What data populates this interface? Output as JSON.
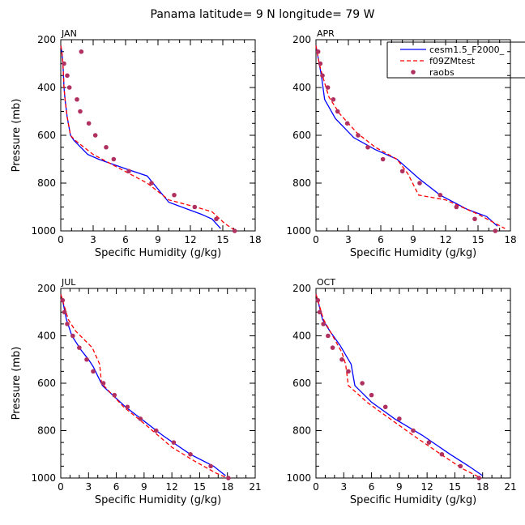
{
  "figure": {
    "title": "Panama  latitude= 9 N longitude= 79 W"
  },
  "legend": {
    "entries": [
      {
        "name": "cesm1.5_F2000_",
        "color": "#0000ff",
        "style": "solid"
      },
      {
        "name": "f09ZMtest",
        "color": "#ff0000",
        "style": "dashed"
      },
      {
        "name": "raobs",
        "color": "#b03060",
        "style": "dots"
      }
    ]
  },
  "chart_data": [
    {
      "type": "line",
      "panel": "JAN",
      "xlabel": "Specific Humidity (g/kg)",
      "ylabel": "Pressure (mb)",
      "xlim": [
        0,
        18
      ],
      "ylim": [
        200,
        1000
      ],
      "y_inverted": true,
      "xticks": [
        0,
        3,
        6,
        9,
        12,
        15,
        18
      ],
      "yticks": [
        200,
        400,
        600,
        800,
        1000
      ],
      "series": [
        {
          "name": "cesm1.5_F2000_",
          "points": [
            [
              0.0,
              225
            ],
            [
              0.1,
              250
            ],
            [
              0.2,
              300
            ],
            [
              0.3,
              400
            ],
            [
              0.4,
              450
            ],
            [
              0.6,
              525
            ],
            [
              0.9,
              600
            ],
            [
              1.2,
              620
            ],
            [
              2.5,
              680
            ],
            [
              3.5,
              700
            ],
            [
              6.0,
              740
            ],
            [
              8.0,
              770
            ],
            [
              10.0,
              880
            ],
            [
              13.0,
              930
            ],
            [
              14.0,
              950
            ],
            [
              14.8,
              990
            ]
          ]
        },
        {
          "name": "f09ZMtest",
          "points": [
            [
              0.0,
              225
            ],
            [
              0.1,
              250
            ],
            [
              0.2,
              300
            ],
            [
              0.3,
              400
            ],
            [
              0.4,
              450
            ],
            [
              0.6,
              525
            ],
            [
              0.9,
              600
            ],
            [
              1.3,
              620
            ],
            [
              3.0,
              680
            ],
            [
              5.5,
              740
            ],
            [
              8.0,
              800
            ],
            [
              10.0,
              870
            ],
            [
              12.5,
              900
            ],
            [
              14.0,
              920
            ],
            [
              15.2,
              970
            ],
            [
              16.2,
              1000
            ]
          ]
        },
        {
          "name": "raobs",
          "points": [
            [
              1.9,
              250
            ],
            [
              0.3,
              300
            ],
            [
              0.6,
              350
            ],
            [
              0.8,
              400
            ],
            [
              1.5,
              450
            ],
            [
              1.8,
              500
            ],
            [
              2.6,
              550
            ],
            [
              3.2,
              600
            ],
            [
              4.2,
              650
            ],
            [
              4.9,
              700
            ],
            [
              6.3,
              750
            ],
            [
              8.4,
              800
            ],
            [
              10.5,
              850
            ],
            [
              12.4,
              900
            ],
            [
              14.4,
              950
            ],
            [
              16.1,
              1000
            ]
          ]
        }
      ]
    },
    {
      "type": "line",
      "panel": "APR",
      "xlabel": "Specific Humidity (g/kg)",
      "ylabel": "",
      "xlim": [
        0,
        18
      ],
      "ylim": [
        200,
        1000
      ],
      "y_inverted": true,
      "xticks": [
        0,
        3,
        6,
        9,
        12,
        15,
        18
      ],
      "yticks": [
        200,
        400,
        600,
        800,
        1000
      ],
      "series": [
        {
          "name": "cesm1.5_F2000_",
          "points": [
            [
              0.0,
              225
            ],
            [
              0.1,
              250
            ],
            [
              0.3,
              300
            ],
            [
              0.5,
              350
            ],
            [
              0.8,
              450
            ],
            [
              1.8,
              530
            ],
            [
              3.5,
              610
            ],
            [
              5.5,
              660
            ],
            [
              7.5,
              700
            ],
            [
              9.5,
              780
            ],
            [
              11.5,
              850
            ],
            [
              14.0,
              910
            ],
            [
              15.8,
              940
            ],
            [
              16.8,
              980
            ]
          ]
        },
        {
          "name": "f09ZMtest",
          "points": [
            [
              0.0,
              225
            ],
            [
              0.1,
              250
            ],
            [
              0.3,
              300
            ],
            [
              0.6,
              350
            ],
            [
              1.2,
              440
            ],
            [
              2.2,
              510
            ],
            [
              3.8,
              590
            ],
            [
              5.5,
              650
            ],
            [
              7.5,
              700
            ],
            [
              8.5,
              760
            ],
            [
              9.5,
              850
            ],
            [
              12.0,
              870
            ],
            [
              15.0,
              930
            ],
            [
              17.5,
              990
            ]
          ]
        },
        {
          "name": "raobs",
          "points": [
            [
              0.2,
              250
            ],
            [
              0.4,
              300
            ],
            [
              0.6,
              350
            ],
            [
              1.1,
              400
            ],
            [
              1.6,
              450
            ],
            [
              2.0,
              500
            ],
            [
              2.9,
              550
            ],
            [
              3.9,
              600
            ],
            [
              4.8,
              650
            ],
            [
              6.2,
              700
            ],
            [
              8.0,
              750
            ],
            [
              9.6,
              800
            ],
            [
              11.5,
              850
            ],
            [
              13.0,
              900
            ],
            [
              14.7,
              950
            ],
            [
              16.6,
              1000
            ]
          ]
        }
      ]
    },
    {
      "type": "line",
      "panel": "JUL",
      "xlabel": "Specific Humidity (g/kg)",
      "ylabel": "Pressure (mb)",
      "xlim": [
        0,
        21
      ],
      "ylim": [
        200,
        1000
      ],
      "y_inverted": true,
      "xticks": [
        0,
        3,
        6,
        9,
        12,
        15,
        18,
        21
      ],
      "yticks": [
        200,
        400,
        600,
        800,
        1000
      ],
      "series": [
        {
          "name": "cesm1.5_F2000_",
          "points": [
            [
              0.0,
              225
            ],
            [
              0.2,
              250
            ],
            [
              0.6,
              330
            ],
            [
              1.2,
              400
            ],
            [
              2.2,
              460
            ],
            [
              3.0,
              500
            ],
            [
              3.5,
              530
            ],
            [
              4.5,
              610
            ],
            [
              7.0,
              700
            ],
            [
              9.0,
              760
            ],
            [
              11.0,
              820
            ],
            [
              14.0,
              900
            ],
            [
              16.5,
              950
            ],
            [
              17.8,
              990
            ]
          ]
        },
        {
          "name": "f09ZMtest",
          "points": [
            [
              0.0,
              225
            ],
            [
              0.2,
              250
            ],
            [
              0.8,
              330
            ],
            [
              1.6,
              380
            ],
            [
              3.4,
              450
            ],
            [
              4.2,
              520
            ],
            [
              4.4,
              600
            ],
            [
              6.8,
              700
            ],
            [
              9.0,
              770
            ],
            [
              12.0,
              870
            ],
            [
              14.5,
              930
            ],
            [
              16.8,
              980
            ],
            [
              18.0,
              1000
            ]
          ]
        },
        {
          "name": "raobs",
          "points": [
            [
              0.2,
              250
            ],
            [
              0.4,
              300
            ],
            [
              0.7,
              350
            ],
            [
              1.3,
              400
            ],
            [
              2.0,
              450
            ],
            [
              2.8,
              500
            ],
            [
              3.5,
              550
            ],
            [
              4.6,
              600
            ],
            [
              5.8,
              650
            ],
            [
              7.2,
              700
            ],
            [
              8.6,
              750
            ],
            [
              10.3,
              800
            ],
            [
              12.2,
              850
            ],
            [
              14.0,
              900
            ],
            [
              16.2,
              950
            ],
            [
              18.1,
              1000
            ]
          ]
        }
      ]
    },
    {
      "type": "line",
      "panel": "OCT",
      "xlabel": "Specific Humidity (g/kg)",
      "ylabel": "",
      "xlim": [
        0,
        21
      ],
      "ylim": [
        200,
        1000
      ],
      "y_inverted": true,
      "xticks": [
        0,
        3,
        6,
        9,
        12,
        15,
        18,
        21
      ],
      "yticks": [
        200,
        400,
        600,
        800,
        1000
      ],
      "series": [
        {
          "name": "cesm1.5_F2000_",
          "points": [
            [
              0.0,
              225
            ],
            [
              0.2,
              250
            ],
            [
              0.7,
              330
            ],
            [
              1.5,
              380
            ],
            [
              2.6,
              440
            ],
            [
              3.8,
              520
            ],
            [
              4.2,
              610
            ],
            [
              6.0,
              680
            ],
            [
              8.5,
              750
            ],
            [
              11.5,
              820
            ],
            [
              14.5,
              900
            ],
            [
              16.5,
              950
            ],
            [
              18.0,
              990
            ]
          ]
        },
        {
          "name": "f09ZMtest",
          "points": [
            [
              0.0,
              225
            ],
            [
              0.2,
              250
            ],
            [
              0.8,
              330
            ],
            [
              1.8,
              400
            ],
            [
              2.8,
              470
            ],
            [
              3.2,
              520
            ],
            [
              3.5,
              610
            ],
            [
              5.5,
              680
            ],
            [
              8.0,
              750
            ],
            [
              10.5,
              820
            ],
            [
              13.5,
              900
            ],
            [
              15.8,
              960
            ],
            [
              17.8,
              1000
            ]
          ]
        },
        {
          "name": "raobs",
          "points": [
            [
              0.2,
              250
            ],
            [
              0.4,
              300
            ],
            [
              0.8,
              350
            ],
            [
              1.3,
              400
            ],
            [
              1.8,
              450
            ],
            [
              2.8,
              500
            ],
            [
              3.5,
              550
            ],
            [
              5.0,
              600
            ],
            [
              6.0,
              650
            ],
            [
              7.5,
              700
            ],
            [
              9.0,
              750
            ],
            [
              10.5,
              800
            ],
            [
              12.2,
              850
            ],
            [
              13.6,
              900
            ],
            [
              15.6,
              950
            ],
            [
              17.6,
              1000
            ]
          ]
        }
      ]
    }
  ]
}
